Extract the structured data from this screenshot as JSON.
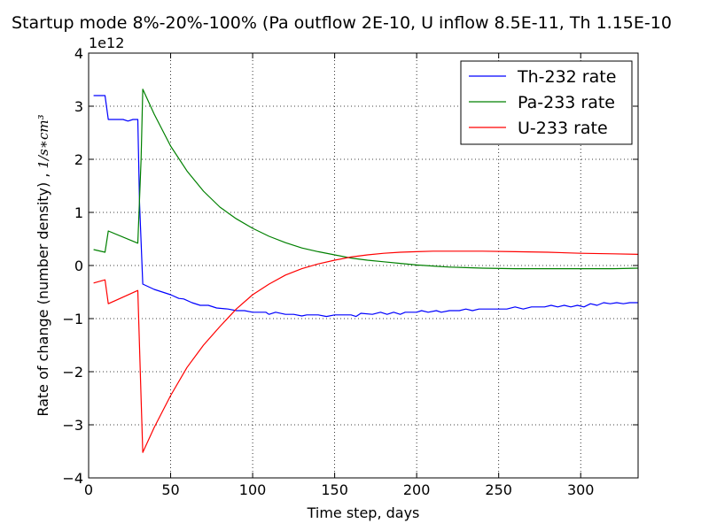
{
  "chart_data": {
    "type": "line",
    "title": "Startup mode 8%-20%-100% (Pa outflow 2E-10, U inflow 8.5E-11, Th 1.15E-10",
    "xlabel": "Time step, days",
    "ylabel": "Rate of change (number density) , ",
    "ylabel_unit": "1/s∗cm³",
    "y_multiplier_label": "1e12",
    "xlim": [
      0,
      335
    ],
    "ylim": [
      -4,
      4
    ],
    "x_ticks": [
      0,
      50,
      100,
      150,
      200,
      250,
      300
    ],
    "x_tick_labels": [
      "0",
      "50",
      "100",
      "150",
      "200",
      "250",
      "300"
    ],
    "y_ticks": [
      -4,
      -3,
      -2,
      -1,
      0,
      1,
      2,
      3,
      4
    ],
    "y_tick_labels": [
      "−4",
      "−3",
      "−2",
      "−1",
      "0",
      "1",
      "2",
      "3",
      "4"
    ],
    "grid": true,
    "legend_position": "top-right",
    "series": [
      {
        "name": "Th-232 rate",
        "color": "#0000ff",
        "points": [
          [
            3,
            3.2
          ],
          [
            10,
            3.2
          ],
          [
            12,
            2.75
          ],
          [
            21,
            2.75
          ],
          [
            24,
            2.72
          ],
          [
            27,
            2.75
          ],
          [
            30,
            2.75
          ],
          [
            31,
            1.2
          ],
          [
            33,
            -0.35
          ],
          [
            40,
            -0.45
          ],
          [
            50,
            -0.55
          ],
          [
            55,
            -0.62
          ],
          [
            58,
            -0.63
          ],
          [
            63,
            -0.7
          ],
          [
            68,
            -0.75
          ],
          [
            73,
            -0.75
          ],
          [
            78,
            -0.8
          ],
          [
            85,
            -0.82
          ],
          [
            90,
            -0.85
          ],
          [
            95,
            -0.85
          ],
          [
            100,
            -0.88
          ],
          [
            108,
            -0.88
          ],
          [
            110,
            -0.92
          ],
          [
            114,
            -0.88
          ],
          [
            120,
            -0.92
          ],
          [
            125,
            -0.92
          ],
          [
            130,
            -0.95
          ],
          [
            133,
            -0.93
          ],
          [
            140,
            -0.93
          ],
          [
            145,
            -0.96
          ],
          [
            150,
            -0.93
          ],
          [
            160,
            -0.93
          ],
          [
            163,
            -0.96
          ],
          [
            166,
            -0.9
          ],
          [
            173,
            -0.92
          ],
          [
            178,
            -0.88
          ],
          [
            182,
            -0.92
          ],
          [
            186,
            -0.88
          ],
          [
            190,
            -0.92
          ],
          [
            193,
            -0.88
          ],
          [
            200,
            -0.88
          ],
          [
            203,
            -0.85
          ],
          [
            207,
            -0.88
          ],
          [
            212,
            -0.85
          ],
          [
            215,
            -0.88
          ],
          [
            220,
            -0.85
          ],
          [
            226,
            -0.85
          ],
          [
            230,
            -0.82
          ],
          [
            234,
            -0.85
          ],
          [
            238,
            -0.82
          ],
          [
            242,
            -0.82
          ],
          [
            255,
            -0.82
          ],
          [
            260,
            -0.78
          ],
          [
            265,
            -0.82
          ],
          [
            270,
            -0.78
          ],
          [
            278,
            -0.78
          ],
          [
            282,
            -0.75
          ],
          [
            286,
            -0.78
          ],
          [
            290,
            -0.75
          ],
          [
            294,
            -0.78
          ],
          [
            298,
            -0.75
          ],
          [
            302,
            -0.78
          ],
          [
            306,
            -0.72
          ],
          [
            310,
            -0.75
          ],
          [
            314,
            -0.7
          ],
          [
            318,
            -0.72
          ],
          [
            322,
            -0.7
          ],
          [
            326,
            -0.72
          ],
          [
            330,
            -0.7
          ],
          [
            335,
            -0.7
          ]
        ]
      },
      {
        "name": "Pa-233 rate",
        "color": "#008000",
        "points": [
          [
            3,
            0.3
          ],
          [
            10,
            0.25
          ],
          [
            12,
            0.65
          ],
          [
            30,
            0.42
          ],
          [
            32,
            2.0
          ],
          [
            33,
            3.32
          ],
          [
            40,
            2.85
          ],
          [
            50,
            2.25
          ],
          [
            60,
            1.78
          ],
          [
            70,
            1.4
          ],
          [
            80,
            1.1
          ],
          [
            90,
            0.88
          ],
          [
            100,
            0.7
          ],
          [
            110,
            0.55
          ],
          [
            120,
            0.43
          ],
          [
            130,
            0.33
          ],
          [
            140,
            0.26
          ],
          [
            150,
            0.2
          ],
          [
            160,
            0.14
          ],
          [
            170,
            0.1
          ],
          [
            180,
            0.07
          ],
          [
            190,
            0.04
          ],
          [
            200,
            0.01
          ],
          [
            210,
            -0.01
          ],
          [
            220,
            -0.03
          ],
          [
            230,
            -0.04
          ],
          [
            240,
            -0.05
          ],
          [
            260,
            -0.06
          ],
          [
            280,
            -0.06
          ],
          [
            300,
            -0.06
          ],
          [
            320,
            -0.06
          ],
          [
            335,
            -0.05
          ]
        ]
      },
      {
        "name": "U-233 rate",
        "color": "#ff0000",
        "points": [
          [
            3,
            -0.33
          ],
          [
            10,
            -0.27
          ],
          [
            12,
            -0.72
          ],
          [
            30,
            -0.47
          ],
          [
            32,
            -2.5
          ],
          [
            33,
            -3.52
          ],
          [
            40,
            -3.05
          ],
          [
            50,
            -2.45
          ],
          [
            60,
            -1.92
          ],
          [
            70,
            -1.5
          ],
          [
            80,
            -1.15
          ],
          [
            90,
            -0.82
          ],
          [
            100,
            -0.55
          ],
          [
            110,
            -0.35
          ],
          [
            120,
            -0.18
          ],
          [
            130,
            -0.06
          ],
          [
            140,
            0.03
          ],
          [
            150,
            0.1
          ],
          [
            160,
            0.16
          ],
          [
            170,
            0.2
          ],
          [
            180,
            0.23
          ],
          [
            190,
            0.25
          ],
          [
            200,
            0.26
          ],
          [
            210,
            0.27
          ],
          [
            220,
            0.27
          ],
          [
            230,
            0.27
          ],
          [
            240,
            0.27
          ],
          [
            260,
            0.26
          ],
          [
            280,
            0.25
          ],
          [
            300,
            0.23
          ],
          [
            320,
            0.22
          ],
          [
            335,
            0.21
          ]
        ]
      }
    ]
  }
}
